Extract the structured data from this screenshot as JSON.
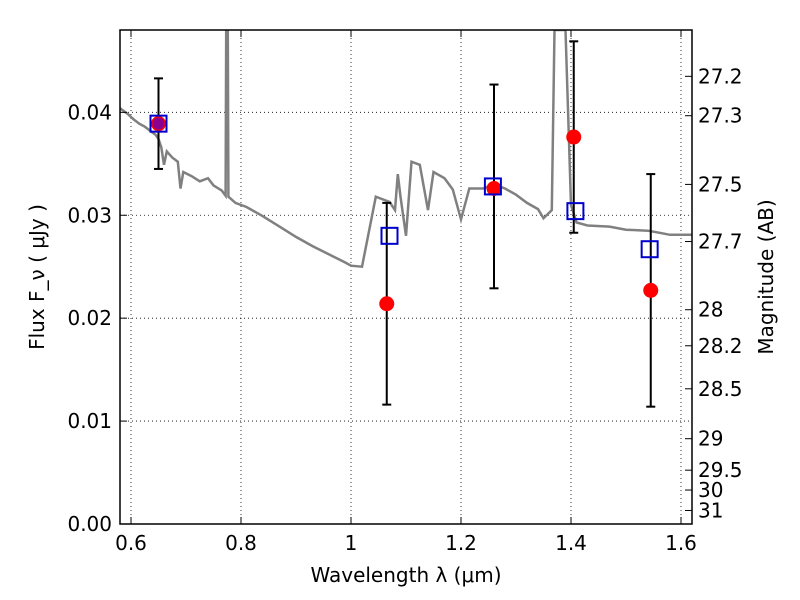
{
  "chart_data": {
    "type": "scatter",
    "xlabel": "Wavelength  λ (μm)",
    "ylabel": "Flux  F_ν  ( μJy )",
    "y2label": "Magnitude (AB)",
    "xlim": [
      0.58,
      1.62
    ],
    "ylim": [
      0.0,
      0.048
    ],
    "x_ticks": [
      0.6,
      0.8,
      1.0,
      1.2,
      1.4,
      1.6
    ],
    "x_tick_labels": [
      "0.6",
      "0.8",
      "1",
      "1.2",
      "1.4",
      "1.6"
    ],
    "y_ticks": [
      0.0,
      0.01,
      0.02,
      0.03,
      0.04
    ],
    "y_tick_labels": [
      "0.00",
      "0.01",
      "0.02",
      "0.03",
      "0.04"
    ],
    "grid": true,
    "mag_ticks": [
      27.2,
      27.3,
      27.5,
      27.7,
      28,
      28.2,
      28.5,
      29,
      29.5,
      30,
      31
    ],
    "mag_tick_labels": [
      "27.2",
      "27.3",
      "27.5",
      "27.7",
      "28",
      "28.2",
      "28.5",
      "29",
      "29.5",
      "30",
      "31"
    ],
    "colors": {
      "model": "#808080",
      "observed": "#ff0000",
      "synthetic": "#0000cc",
      "errorbar": "#000000"
    },
    "series": [
      {
        "type": "line",
        "points": [
          [
            0.58,
            0.0404
          ],
          [
            0.595,
            0.0398
          ],
          [
            0.605,
            0.0393
          ],
          [
            0.615,
            0.0389
          ],
          [
            0.625,
            0.0386
          ],
          [
            0.635,
            0.0382
          ],
          [
            0.645,
            0.0378
          ],
          [
            0.65,
            0.0374
          ],
          [
            0.655,
            0.0366
          ],
          [
            0.66,
            0.0349
          ],
          [
            0.665,
            0.0362
          ],
          [
            0.675,
            0.0356
          ],
          [
            0.685,
            0.0352
          ],
          [
            0.69,
            0.0326
          ],
          [
            0.695,
            0.0342
          ],
          [
            0.71,
            0.0338
          ],
          [
            0.725,
            0.0333
          ],
          [
            0.74,
            0.0336
          ],
          [
            0.75,
            0.0329
          ],
          [
            0.765,
            0.0324
          ],
          [
            0.772,
            0.0319
          ],
          [
            0.773,
            0.048
          ],
          [
            0.776,
            0.048
          ],
          [
            0.777,
            0.0318
          ],
          [
            0.79,
            0.0312
          ],
          [
            0.81,
            0.0308
          ],
          [
            0.84,
            0.0299
          ],
          [
            0.87,
            0.0289
          ],
          [
            0.9,
            0.0279
          ],
          [
            0.93,
            0.027
          ],
          [
            0.96,
            0.0262
          ],
          [
            0.99,
            0.0254
          ],
          [
            1.0,
            0.0251
          ],
          [
            1.02,
            0.025
          ],
          [
            1.045,
            0.0318
          ],
          [
            1.07,
            0.0313
          ],
          [
            1.08,
            0.0305
          ],
          [
            1.085,
            0.034
          ],
          [
            1.09,
            0.0318
          ],
          [
            1.1,
            0.028
          ],
          [
            1.11,
            0.0352
          ],
          [
            1.125,
            0.0349
          ],
          [
            1.14,
            0.0305
          ],
          [
            1.15,
            0.0342
          ],
          [
            1.17,
            0.0336
          ],
          [
            1.185,
            0.0325
          ],
          [
            1.2,
            0.0296
          ],
          [
            1.215,
            0.0326
          ],
          [
            1.24,
            0.0326
          ],
          [
            1.26,
            0.033
          ],
          [
            1.28,
            0.0326
          ],
          [
            1.3,
            0.032
          ],
          [
            1.32,
            0.0312
          ],
          [
            1.34,
            0.0306
          ],
          [
            1.35,
            0.0297
          ],
          [
            1.365,
            0.0305
          ],
          [
            1.37,
            0.048
          ],
          [
            1.39,
            0.048
          ],
          [
            1.4,
            0.031
          ],
          [
            1.41,
            0.0293
          ],
          [
            1.43,
            0.029
          ],
          [
            1.47,
            0.0289
          ],
          [
            1.5,
            0.0286
          ],
          [
            1.54,
            0.0285
          ],
          [
            1.56,
            0.0283
          ],
          [
            1.58,
            0.0281
          ],
          [
            1.62,
            0.0281
          ]
        ]
      },
      {
        "type": "points",
        "x": [
          0.65,
          1.065,
          1.26,
          1.405,
          1.545
        ],
        "y": [
          0.0389,
          0.0214,
          0.0326,
          0.0376,
          0.0227
        ],
        "yerr_low": [
          0.0345,
          0.0116,
          0.0229,
          0.0283,
          0.0114
        ],
        "yerr_high": [
          0.0433,
          0.0312,
          0.0427,
          0.0469,
          0.034
        ]
      },
      {
        "type": "squares",
        "x": [
          0.65,
          1.07,
          1.258,
          1.408,
          1.543
        ],
        "y": [
          0.0389,
          0.028,
          0.0328,
          0.0304,
          0.0267
        ]
      }
    ]
  }
}
